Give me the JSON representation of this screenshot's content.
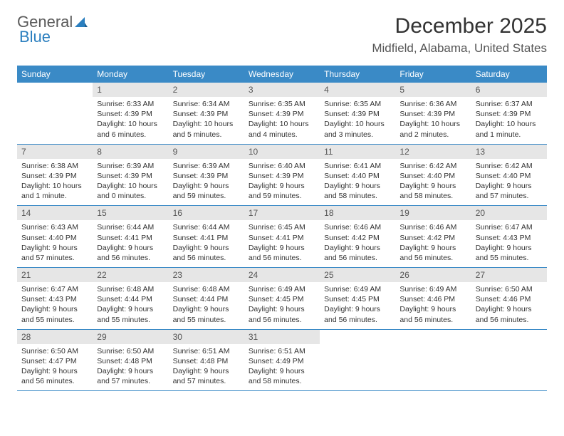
{
  "logo": {
    "word1": "General",
    "word2": "Blue"
  },
  "title": "December 2025",
  "location": "Midfield, Alabama, United States",
  "colors": {
    "header_bg": "#3a8ac6",
    "header_text": "#ffffff",
    "daynum_bg": "#e6e6e6",
    "daynum_text": "#555555",
    "body_text": "#333333",
    "rule": "#3a8ac6",
    "logo_gray": "#5a5a5a",
    "logo_blue": "#2b7fbf"
  },
  "fonts": {
    "title_size": 30,
    "location_size": 17,
    "weekday_size": 12,
    "body_size": 10.5
  },
  "weekdays": [
    "Sunday",
    "Monday",
    "Tuesday",
    "Wednesday",
    "Thursday",
    "Friday",
    "Saturday"
  ],
  "weeks": [
    [
      {
        "num": "",
        "lines": []
      },
      {
        "num": "1",
        "lines": [
          "Sunrise: 6:33 AM",
          "Sunset: 4:39 PM",
          "Daylight: 10 hours",
          "and 6 minutes."
        ]
      },
      {
        "num": "2",
        "lines": [
          "Sunrise: 6:34 AM",
          "Sunset: 4:39 PM",
          "Daylight: 10 hours",
          "and 5 minutes."
        ]
      },
      {
        "num": "3",
        "lines": [
          "Sunrise: 6:35 AM",
          "Sunset: 4:39 PM",
          "Daylight: 10 hours",
          "and 4 minutes."
        ]
      },
      {
        "num": "4",
        "lines": [
          "Sunrise: 6:35 AM",
          "Sunset: 4:39 PM",
          "Daylight: 10 hours",
          "and 3 minutes."
        ]
      },
      {
        "num": "5",
        "lines": [
          "Sunrise: 6:36 AM",
          "Sunset: 4:39 PM",
          "Daylight: 10 hours",
          "and 2 minutes."
        ]
      },
      {
        "num": "6",
        "lines": [
          "Sunrise: 6:37 AM",
          "Sunset: 4:39 PM",
          "Daylight: 10 hours",
          "and 1 minute."
        ]
      }
    ],
    [
      {
        "num": "7",
        "lines": [
          "Sunrise: 6:38 AM",
          "Sunset: 4:39 PM",
          "Daylight: 10 hours",
          "and 1 minute."
        ]
      },
      {
        "num": "8",
        "lines": [
          "Sunrise: 6:39 AM",
          "Sunset: 4:39 PM",
          "Daylight: 10 hours",
          "and 0 minutes."
        ]
      },
      {
        "num": "9",
        "lines": [
          "Sunrise: 6:39 AM",
          "Sunset: 4:39 PM",
          "Daylight: 9 hours",
          "and 59 minutes."
        ]
      },
      {
        "num": "10",
        "lines": [
          "Sunrise: 6:40 AM",
          "Sunset: 4:39 PM",
          "Daylight: 9 hours",
          "and 59 minutes."
        ]
      },
      {
        "num": "11",
        "lines": [
          "Sunrise: 6:41 AM",
          "Sunset: 4:40 PM",
          "Daylight: 9 hours",
          "and 58 minutes."
        ]
      },
      {
        "num": "12",
        "lines": [
          "Sunrise: 6:42 AM",
          "Sunset: 4:40 PM",
          "Daylight: 9 hours",
          "and 58 minutes."
        ]
      },
      {
        "num": "13",
        "lines": [
          "Sunrise: 6:42 AM",
          "Sunset: 4:40 PM",
          "Daylight: 9 hours",
          "and 57 minutes."
        ]
      }
    ],
    [
      {
        "num": "14",
        "lines": [
          "Sunrise: 6:43 AM",
          "Sunset: 4:40 PM",
          "Daylight: 9 hours",
          "and 57 minutes."
        ]
      },
      {
        "num": "15",
        "lines": [
          "Sunrise: 6:44 AM",
          "Sunset: 4:41 PM",
          "Daylight: 9 hours",
          "and 56 minutes."
        ]
      },
      {
        "num": "16",
        "lines": [
          "Sunrise: 6:44 AM",
          "Sunset: 4:41 PM",
          "Daylight: 9 hours",
          "and 56 minutes."
        ]
      },
      {
        "num": "17",
        "lines": [
          "Sunrise: 6:45 AM",
          "Sunset: 4:41 PM",
          "Daylight: 9 hours",
          "and 56 minutes."
        ]
      },
      {
        "num": "18",
        "lines": [
          "Sunrise: 6:46 AM",
          "Sunset: 4:42 PM",
          "Daylight: 9 hours",
          "and 56 minutes."
        ]
      },
      {
        "num": "19",
        "lines": [
          "Sunrise: 6:46 AM",
          "Sunset: 4:42 PM",
          "Daylight: 9 hours",
          "and 56 minutes."
        ]
      },
      {
        "num": "20",
        "lines": [
          "Sunrise: 6:47 AM",
          "Sunset: 4:43 PM",
          "Daylight: 9 hours",
          "and 55 minutes."
        ]
      }
    ],
    [
      {
        "num": "21",
        "lines": [
          "Sunrise: 6:47 AM",
          "Sunset: 4:43 PM",
          "Daylight: 9 hours",
          "and 55 minutes."
        ]
      },
      {
        "num": "22",
        "lines": [
          "Sunrise: 6:48 AM",
          "Sunset: 4:44 PM",
          "Daylight: 9 hours",
          "and 55 minutes."
        ]
      },
      {
        "num": "23",
        "lines": [
          "Sunrise: 6:48 AM",
          "Sunset: 4:44 PM",
          "Daylight: 9 hours",
          "and 55 minutes."
        ]
      },
      {
        "num": "24",
        "lines": [
          "Sunrise: 6:49 AM",
          "Sunset: 4:45 PM",
          "Daylight: 9 hours",
          "and 56 minutes."
        ]
      },
      {
        "num": "25",
        "lines": [
          "Sunrise: 6:49 AM",
          "Sunset: 4:45 PM",
          "Daylight: 9 hours",
          "and 56 minutes."
        ]
      },
      {
        "num": "26",
        "lines": [
          "Sunrise: 6:49 AM",
          "Sunset: 4:46 PM",
          "Daylight: 9 hours",
          "and 56 minutes."
        ]
      },
      {
        "num": "27",
        "lines": [
          "Sunrise: 6:50 AM",
          "Sunset: 4:46 PM",
          "Daylight: 9 hours",
          "and 56 minutes."
        ]
      }
    ],
    [
      {
        "num": "28",
        "lines": [
          "Sunrise: 6:50 AM",
          "Sunset: 4:47 PM",
          "Daylight: 9 hours",
          "and 56 minutes."
        ]
      },
      {
        "num": "29",
        "lines": [
          "Sunrise: 6:50 AM",
          "Sunset: 4:48 PM",
          "Daylight: 9 hours",
          "and 57 minutes."
        ]
      },
      {
        "num": "30",
        "lines": [
          "Sunrise: 6:51 AM",
          "Sunset: 4:48 PM",
          "Daylight: 9 hours",
          "and 57 minutes."
        ]
      },
      {
        "num": "31",
        "lines": [
          "Sunrise: 6:51 AM",
          "Sunset: 4:49 PM",
          "Daylight: 9 hours",
          "and 58 minutes."
        ]
      },
      {
        "num": "",
        "lines": []
      },
      {
        "num": "",
        "lines": []
      },
      {
        "num": "",
        "lines": []
      }
    ]
  ]
}
